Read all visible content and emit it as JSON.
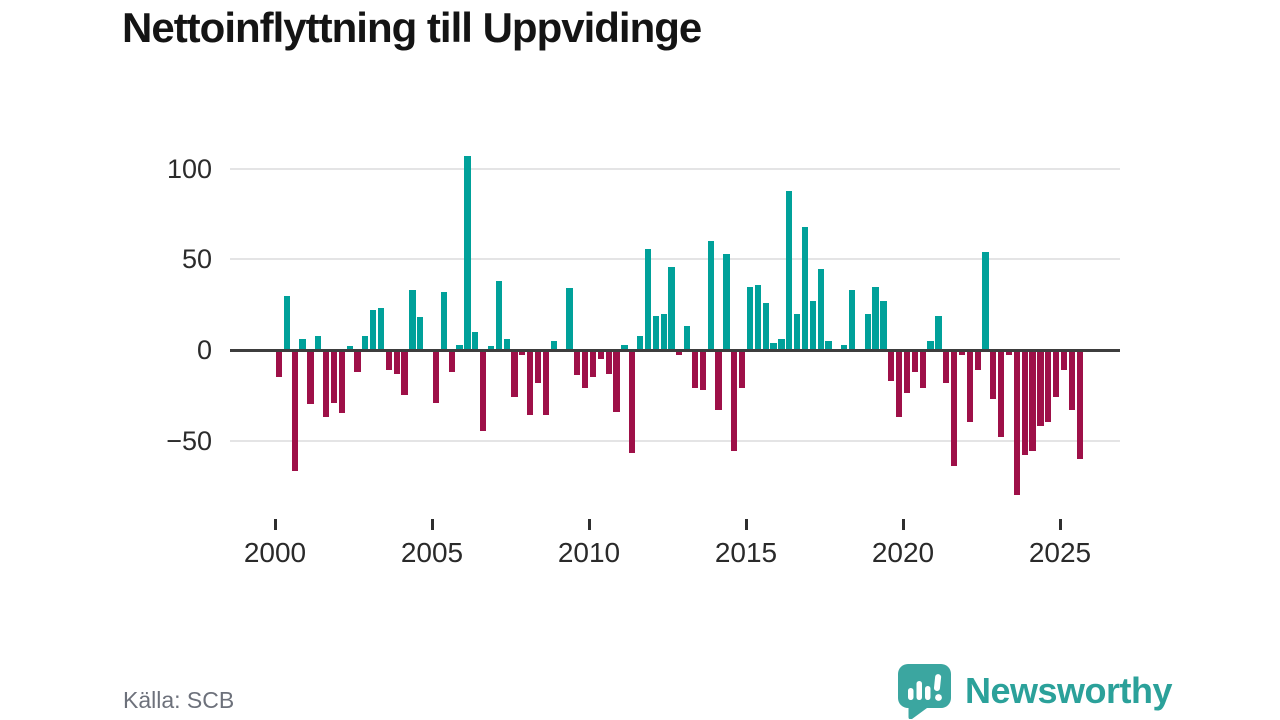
{
  "title": "Nettoinflyttning till Uppvidinge",
  "source": {
    "text": "Källa: SCB"
  },
  "branding": {
    "name": "Newsworthy"
  },
  "colors": {
    "background": "#ffffff",
    "positive": "#00a19a",
    "negative": "#9e1048",
    "axis": "#3d3d3d",
    "grid": "#e4e4e5",
    "title": "#141414",
    "tick_label": "#2a2a2a",
    "source_text": "#6d717b",
    "brand": "#2ba19a"
  },
  "chart_data": {
    "type": "bar",
    "title": "Nettoinflyttning till Uppvidinge",
    "xlabel": "",
    "ylabel": "",
    "grid": "horizontal-only",
    "legend": "none",
    "x_unit": "quarter",
    "x_start_year": 2000,
    "x_start_quarter": 1,
    "points_per_year": 4,
    "ylim": [
      -90,
      110.5
    ],
    "y_ticks": [
      {
        "label": "100",
        "value": 100
      },
      {
        "label": "50",
        "value": 50
      },
      {
        "label": "0",
        "value": 0
      },
      {
        "label": "−50",
        "value": -50
      }
    ],
    "x_ticks": [
      {
        "label": "2000",
        "year": 2000
      },
      {
        "label": "2005",
        "year": 2005
      },
      {
        "label": "2010",
        "year": 2010
      },
      {
        "label": "2015",
        "year": 2015
      },
      {
        "label": "2020",
        "year": 2020
      },
      {
        "label": "2025",
        "year": 2025
      }
    ],
    "series": [
      {
        "name": "Nettoinflyttning",
        "values": [
          -15,
          30,
          -67,
          6,
          -30,
          8,
          -37,
          -29,
          -35,
          2,
          -12,
          8,
          22,
          23,
          -11,
          -13,
          -25,
          33,
          18,
          0,
          -29,
          32,
          -12,
          3,
          107,
          10,
          -45,
          2,
          38,
          6,
          -26,
          -3,
          -36,
          -18,
          -36,
          5,
          0,
          34,
          -14,
          -21,
          -15,
          -5,
          -13,
          -34,
          3,
          -57,
          8,
          56,
          19,
          20,
          46,
          -3,
          13,
          -21,
          -22,
          60,
          -33,
          53,
          -56,
          -21,
          35,
          36,
          26,
          4,
          6,
          88,
          20,
          68,
          27,
          45,
          5,
          0,
          3,
          33,
          0,
          20,
          35,
          27,
          -17,
          -37,
          -24,
          -12,
          -21,
          5,
          19,
          -18,
          -64,
          -3,
          -40,
          -11,
          54,
          -27,
          -48,
          -3,
          -80,
          -58,
          -56,
          -42,
          -40,
          -26,
          -11,
          -33,
          -60
        ]
      }
    ]
  }
}
